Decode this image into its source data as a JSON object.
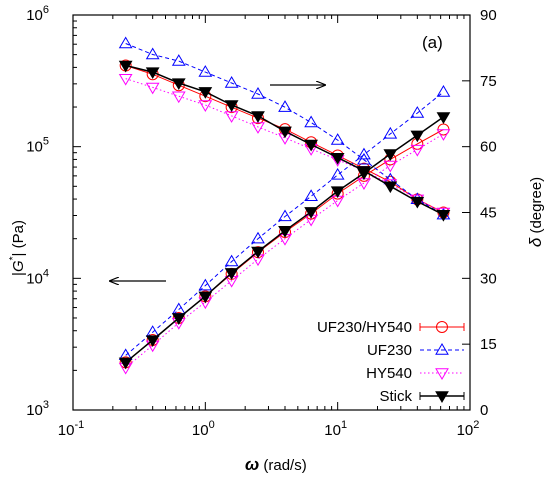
{
  "chart_data": {
    "type": "line",
    "panel_label": "(a)",
    "x_axis": {
      "label_symbol": "ω",
      "label_unit": " (rad/s)",
      "scale": "log",
      "range": [
        0.1,
        100
      ],
      "ticks": [
        {
          "value": 0.1,
          "base": "10",
          "exp": "-1"
        },
        {
          "value": 1,
          "base": "10",
          "exp": "0"
        },
        {
          "value": 10,
          "base": "10",
          "exp": "1"
        },
        {
          "value": 100,
          "base": "10",
          "exp": "2"
        }
      ]
    },
    "y_axis_left": {
      "label_prefix": "|",
      "label_symbol": "G",
      "label_sup": "*",
      "label_suffix": "| (Pa)",
      "scale": "log",
      "range": [
        1000,
        1000000
      ],
      "ticks": [
        {
          "value": 1000,
          "base": "10",
          "exp": "3"
        },
        {
          "value": 10000,
          "base": "10",
          "exp": "4"
        },
        {
          "value": 100000,
          "base": "10",
          "exp": "5"
        },
        {
          "value": 1000000,
          "base": "10",
          "exp": "6"
        }
      ]
    },
    "y_axis_right": {
      "label_symbol": "δ",
      "label_unit": " (degree)",
      "scale": "linear",
      "range": [
        0,
        90
      ],
      "ticks": [
        "0",
        "15",
        "30",
        "45",
        "60",
        "75",
        "90"
      ]
    },
    "x": [
      0.25,
      0.4,
      0.63,
      1.0,
      1.58,
      2.5,
      4.0,
      6.3,
      10,
      15.8,
      25,
      40,
      63
    ],
    "series": [
      {
        "name": "UF230/HY540",
        "color": "#ff0000",
        "marker": "circle-open",
        "line": "solid",
        "modulus": [
          2300,
          3400,
          5000,
          7300,
          10800,
          15800,
          22500,
          31000,
          44000,
          60000,
          80000,
          105000,
          135000
        ],
        "phase": [
          78.5,
          76.5,
          74.0,
          71.5,
          69.0,
          66.5,
          64.0,
          61.0,
          58.0,
          55.0,
          52.0,
          48.0,
          45.0
        ]
      },
      {
        "name": "UF230",
        "color": "#0000ff",
        "marker": "triangle-up-open",
        "line": "dashed",
        "modulus": [
          2600,
          3900,
          5800,
          8800,
          13400,
          20000,
          29500,
          42000,
          61000,
          87000,
          125000,
          180000,
          260000
        ],
        "phase": [
          83.5,
          81.0,
          79.5,
          77.0,
          74.5,
          72.0,
          69.0,
          65.5,
          61.5,
          57.0,
          52.5,
          48.0,
          44.5
        ]
      },
      {
        "name": "HY540",
        "color": "#ff00ff",
        "marker": "triangle-down-open",
        "line": "dotted",
        "modulus": [
          2100,
          3100,
          4600,
          6600,
          9600,
          14000,
          20000,
          28000,
          39000,
          53000,
          72000,
          95000,
          125000
        ],
        "phase": [
          75.5,
          73.5,
          71.5,
          69.5,
          67.0,
          64.5,
          62.0,
          59.5,
          57.0,
          54.5,
          51.5,
          48.0,
          45.0
        ]
      },
      {
        "name": "Stick",
        "color": "#000000",
        "marker": "triangle-down-filled",
        "line": "solid",
        "modulus": [
          2300,
          3400,
          5000,
          7300,
          11000,
          16000,
          23000,
          32000,
          46000,
          63000,
          88000,
          122000,
          168000
        ],
        "phase": [
          78.5,
          77.0,
          74.5,
          72.5,
          69.5,
          67.0,
          63.5,
          60.5,
          57.5,
          54.5,
          51.0,
          47.5,
          44.5
        ]
      }
    ],
    "annotations": {
      "arrow_right_to_phase_axis": true,
      "arrow_left_to_modulus_axis": true
    },
    "legend_placement": "bottom-right",
    "grid": false
  }
}
